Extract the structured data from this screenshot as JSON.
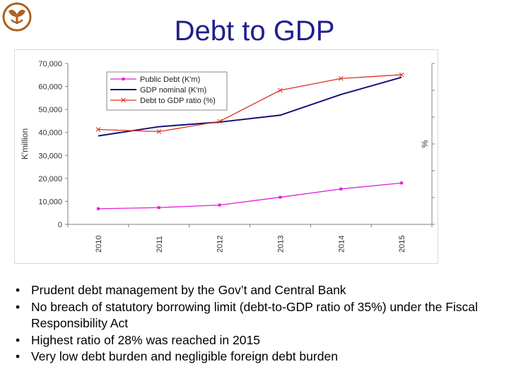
{
  "slide": {
    "title": "Debt to GDP",
    "bullets": [
      "Prudent debt management by the Gov’t and Central Bank",
      "No breach of statutory borrowing limit (debt-to-GDP ratio of 35%) under the Fiscal Responsibility Act",
      "Highest ratio of 28% was reached in 2015",
      "Very low debt burden and negligible foreign debt burden"
    ]
  },
  "colors": {
    "title": "#1f1f8f",
    "public_debt": "#e020d8",
    "gdp_nominal": "#10107a",
    "ratio": "#e03020",
    "logo": "#b06020"
  },
  "chart_data": {
    "type": "line",
    "categories": [
      "2010",
      "2011",
      "2012",
      "2013",
      "2014",
      "2015"
    ],
    "series": [
      {
        "name": "Public Debt (K'm)",
        "axis": "left",
        "values": [
          6800,
          7300,
          8400,
          11800,
          15400,
          18000
        ]
      },
      {
        "name": "GDP nominal (K'm)",
        "axis": "left",
        "values": [
          38500,
          42500,
          44500,
          47500,
          56500,
          64000
        ]
      },
      {
        "name": "Debt to GDP ratio (%)",
        "axis": "right",
        "values": [
          17.7,
          17.3,
          19.2,
          25,
          27.2,
          27.9
        ]
      }
    ],
    "ylabel": "K'million",
    "y2label": "%",
    "ylim": [
      0,
      70000
    ],
    "yticks": [
      "0",
      "10,000",
      "20,000",
      "30,000",
      "40,000",
      "50,000",
      "60,000",
      "70,000"
    ],
    "y2lim": [
      0,
      30
    ],
    "y2ticks": [
      "0",
      "5",
      "10",
      "15",
      "20",
      "25",
      "30"
    ],
    "legend_position": "top-center",
    "grid": false
  }
}
